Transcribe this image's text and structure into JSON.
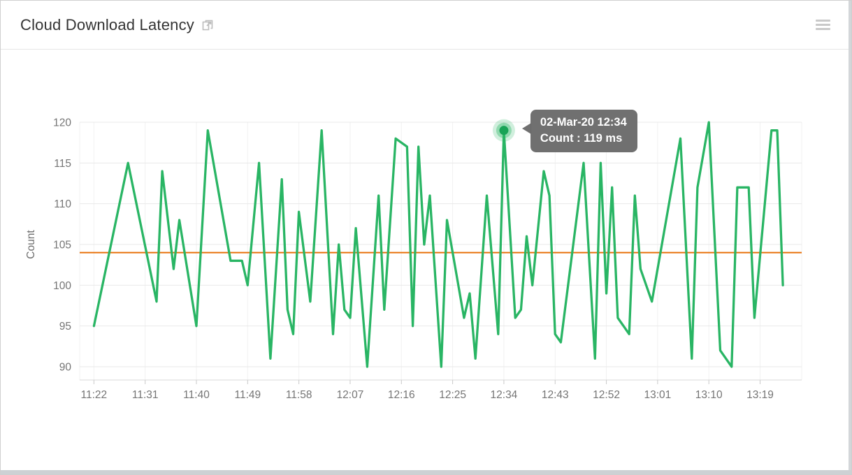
{
  "header": {
    "title": "Cloud Download Latency",
    "external_link_icon": "open-in-new-icon",
    "menu_icon": "hamburger-menu-icon"
  },
  "tooltip": {
    "line1": "02-Mar-20 12:34",
    "line2": "Count : 119 ms"
  },
  "colors": {
    "series_green": "#29b564",
    "marker_green": "#18a356",
    "threshold_orange": "#e8710a",
    "tooltip_gray": "#686868",
    "axis_text": "#757575",
    "grid_line": "#e9e9e9",
    "grid_line_vertical": "#f1f1f1",
    "axis_line": "#d9d9d9"
  },
  "chart_data": {
    "type": "line",
    "title": "Cloud Download Latency",
    "xlabel": "",
    "ylabel": "Count",
    "unit": "ms",
    "ylim": [
      90,
      120
    ],
    "y_ticks": [
      90,
      95,
      100,
      105,
      110,
      115,
      120
    ],
    "x_ticks": [
      "11:22",
      "11:31",
      "11:40",
      "11:49",
      "11:58",
      "12:07",
      "12:16",
      "12:25",
      "12:34",
      "12:43",
      "12:52",
      "13:01",
      "13:10",
      "13:19"
    ],
    "grid": true,
    "legend_position": "none",
    "threshold": {
      "value": 104
    },
    "series": [
      {
        "name": "Count",
        "points": [
          [
            "11:22",
            95
          ],
          [
            "11:28",
            115
          ],
          [
            "11:33",
            98
          ],
          [
            "11:34",
            114
          ],
          [
            "11:36",
            102
          ],
          [
            "11:37",
            108
          ],
          [
            "11:40",
            95
          ],
          [
            "11:42",
            119
          ],
          [
            "11:46",
            103
          ],
          [
            "11:48",
            103
          ],
          [
            "11:49",
            100
          ],
          [
            "11:51",
            115
          ],
          [
            "11:53",
            91
          ],
          [
            "11:55",
            113
          ],
          [
            "11:56",
            97
          ],
          [
            "11:57",
            94
          ],
          [
            "11:58",
            109
          ],
          [
            "12:00",
            98
          ],
          [
            "12:02",
            119
          ],
          [
            "12:04",
            94
          ],
          [
            "12:05",
            105
          ],
          [
            "12:06",
            97
          ],
          [
            "12:07",
            96
          ],
          [
            "12:08",
            107
          ],
          [
            "12:10",
            90
          ],
          [
            "12:12",
            111
          ],
          [
            "12:13",
            97
          ],
          [
            "12:15",
            118
          ],
          [
            "12:17",
            117
          ],
          [
            "12:18",
            95
          ],
          [
            "12:19",
            117
          ],
          [
            "12:20",
            105
          ],
          [
            "12:21",
            111
          ],
          [
            "12:23",
            90
          ],
          [
            "12:24",
            108
          ],
          [
            "12:27",
            96
          ],
          [
            "12:28",
            99
          ],
          [
            "12:29",
            91
          ],
          [
            "12:31",
            111
          ],
          [
            "12:33",
            94
          ],
          [
            "12:34",
            119
          ],
          [
            "12:36",
            96
          ],
          [
            "12:37",
            97
          ],
          [
            "12:38",
            106
          ],
          [
            "12:39",
            100
          ],
          [
            "12:41",
            114
          ],
          [
            "12:42",
            111
          ],
          [
            "12:43",
            94
          ],
          [
            "12:44",
            93
          ],
          [
            "12:48",
            115
          ],
          [
            "12:50",
            91
          ],
          [
            "12:51",
            115
          ],
          [
            "12:52",
            99
          ],
          [
            "12:53",
            112
          ],
          [
            "12:54",
            96
          ],
          [
            "12:56",
            94
          ],
          [
            "12:57",
            111
          ],
          [
            "12:58",
            102
          ],
          [
            "13:00",
            98
          ],
          [
            "13:05",
            118
          ],
          [
            "13:07",
            91
          ],
          [
            "13:08",
            112
          ],
          [
            "13:10",
            120
          ],
          [
            "13:12",
            92
          ],
          [
            "13:14",
            90
          ],
          [
            "13:15",
            112
          ],
          [
            "13:17",
            112
          ],
          [
            "13:18",
            96
          ],
          [
            "13:21",
            119
          ],
          [
            "13:22",
            119
          ],
          [
            "13:23",
            100
          ]
        ]
      }
    ],
    "highlight": {
      "time": "12:34",
      "value": 119,
      "series": "Count"
    },
    "highlight_index": 40
  }
}
